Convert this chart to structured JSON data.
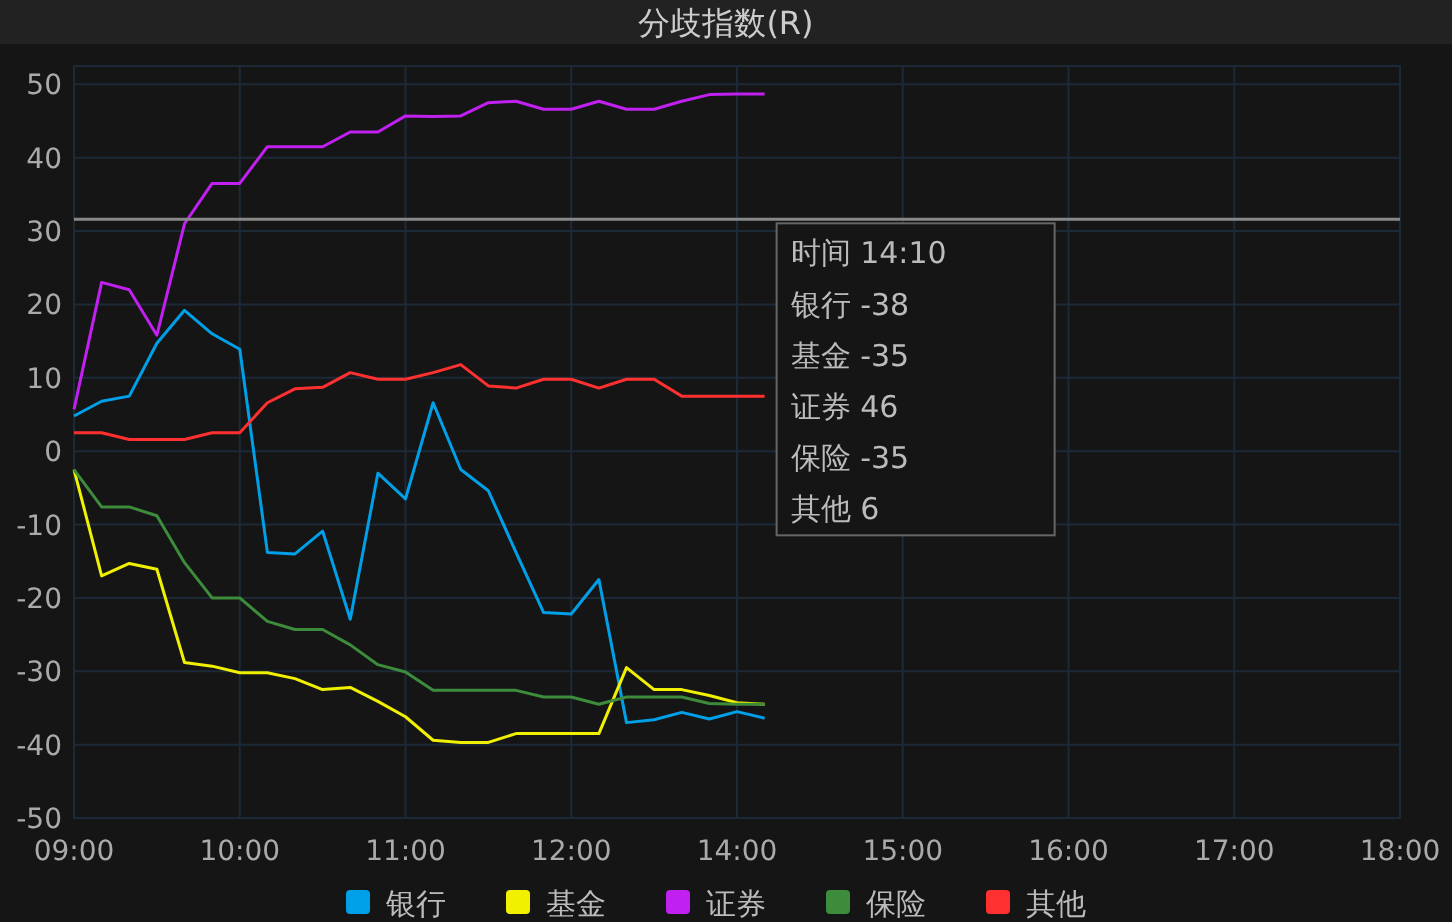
{
  "chart_data": {
    "type": "line",
    "title": "分歧指数(R)",
    "categories": [
      "09:00",
      null,
      null,
      null,
      null,
      null,
      "10:00",
      null,
      null,
      null,
      null,
      null,
      "11:00",
      null,
      null,
      null,
      null,
      null,
      "12:00",
      null,
      null,
      null,
      null,
      null,
      "14:00",
      null,
      null,
      null,
      null,
      null,
      "15:00",
      null,
      null,
      null,
      null,
      null,
      "16:00",
      null,
      null,
      null,
      null,
      null,
      "17:00",
      null,
      null,
      null,
      null,
      null,
      "18:00"
    ],
    "ylim": [
      -50,
      52.5
    ],
    "yticks": [
      -50,
      -40,
      -30,
      -20,
      -10,
      0,
      10,
      20,
      30,
      40,
      50
    ],
    "grid": true,
    "legend": "bottom",
    "series": [
      {
        "name": "银行",
        "color": "#00a0e9",
        "values": [
          4.8,
          6.8,
          7.5,
          14.7,
          19.2,
          16,
          13.9,
          -13.8,
          -14,
          -10.9,
          -22.9,
          -3,
          -6.5,
          6.6,
          -2.5,
          -5.4,
          -13.8,
          -22,
          -22.2,
          -17.5,
          -37,
          -36.6,
          -35.6,
          -36.5,
          -35.5,
          -36.4,
          null,
          null,
          null,
          null,
          null,
          null,
          null,
          null,
          null,
          null,
          null,
          null,
          null,
          null,
          null,
          null,
          null,
          null,
          null,
          null,
          null,
          null,
          null
        ]
      },
      {
        "name": "基金",
        "color": "#f0f000",
        "values": [
          -2.5,
          -17,
          -15.3,
          -16.1,
          -28.8,
          -29.3,
          -30.2,
          -30.2,
          -31,
          -32.5,
          -32.2,
          -34.1,
          -36.2,
          -39.4,
          -39.7,
          -39.7,
          -38.5,
          -38.5,
          -38.5,
          -38.5,
          -29.5,
          -32.5,
          -32.5,
          -33.3,
          -34.3,
          -34.5,
          null,
          null,
          null,
          null,
          null,
          null,
          null,
          null,
          null,
          null,
          null,
          null,
          null,
          null,
          null,
          null,
          null,
          null,
          null,
          null,
          null,
          null,
          null
        ]
      },
      {
        "name": "证券",
        "color": "#c020f0",
        "values": [
          5.7,
          23,
          22,
          15.8,
          31,
          36.5,
          36.5,
          41.5,
          41.5,
          41.5,
          43.5,
          43.5,
          45.7,
          45.6,
          45.7,
          47.5,
          47.7,
          46.6,
          46.6,
          47.7,
          46.6,
          46.6,
          47.7,
          48.6,
          48.7,
          48.7,
          null,
          null,
          null,
          null,
          null,
          null,
          null,
          null,
          null,
          null,
          null,
          null,
          null,
          null,
          null,
          null,
          null,
          null,
          null,
          null,
          null,
          null,
          null
        ]
      },
      {
        "name": "保险",
        "color": "#3c8c3c",
        "values": [
          -2.5,
          -7.6,
          -7.6,
          -8.8,
          -15.2,
          -20,
          -20,
          -23.2,
          -24.3,
          -24.3,
          -26.4,
          -29.1,
          -30.1,
          -32.6,
          -32.6,
          -32.6,
          -32.6,
          -33.5,
          -33.5,
          -34.5,
          -33.5,
          -33.5,
          -33.5,
          -34.4,
          -34.5,
          -34.5,
          null,
          null,
          null,
          null,
          null,
          null,
          null,
          null,
          null,
          null,
          null,
          null,
          null,
          null,
          null,
          null,
          null,
          null,
          null,
          null,
          null,
          null,
          null
        ]
      },
      {
        "name": "其他",
        "color": "#ff3030",
        "values": [
          2.5,
          2.5,
          1.6,
          1.6,
          1.6,
          2.5,
          2.5,
          6.6,
          8.5,
          8.7,
          10.7,
          9.8,
          9.8,
          10.7,
          11.8,
          8.9,
          8.6,
          9.8,
          9.8,
          8.6,
          9.8,
          9.8,
          7.5,
          7.5,
          7.5,
          7.5,
          null,
          null,
          null,
          null,
          null,
          null,
          null,
          null,
          null,
          null,
          null,
          null,
          null,
          null,
          null,
          null,
          null,
          null,
          null,
          null,
          null,
          null,
          null
        ]
      }
    ],
    "ref_lines": [
      {
        "axis": "y",
        "value": 31.6,
        "label": null,
        "color": "#888888"
      }
    ],
    "annotations": [
      "时间 14:10",
      "银行 -38",
      "基金 -35",
      "证券 46",
      "保险 -35",
      "其他 6"
    ]
  }
}
